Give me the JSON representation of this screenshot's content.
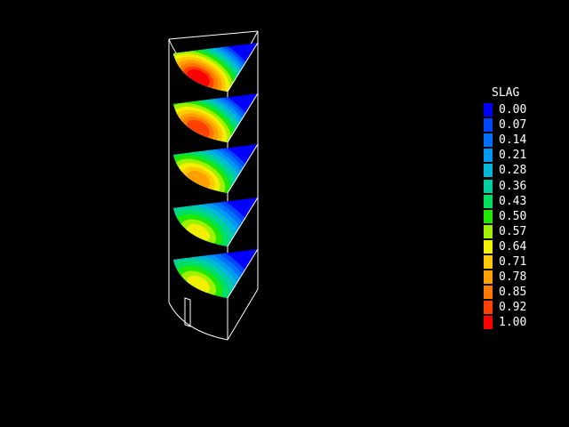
{
  "legend": {
    "title": "SLAG",
    "entries": [
      {
        "label": "0.00",
        "color": "#0000ff"
      },
      {
        "label": "0.07",
        "color": "#0048ff"
      },
      {
        "label": "0.14",
        "color": "#0070ff"
      },
      {
        "label": "0.21",
        "color": "#0098f0"
      },
      {
        "label": "0.28",
        "color": "#00b8d8"
      },
      {
        "label": "0.36",
        "color": "#00d0a0"
      },
      {
        "label": "0.43",
        "color": "#00e060"
      },
      {
        "label": "0.50",
        "color": "#20e800"
      },
      {
        "label": "0.57",
        "color": "#a0f000"
      },
      {
        "label": "0.64",
        "color": "#f0f000"
      },
      {
        "label": "0.71",
        "color": "#ffc800"
      },
      {
        "label": "0.78",
        "color": "#ffa000"
      },
      {
        "label": "0.85",
        "color": "#ff7800"
      },
      {
        "label": "0.92",
        "color": "#ff4000"
      },
      {
        "label": "1.00",
        "color": "#ff0000"
      }
    ]
  },
  "slices": [
    {
      "level": 1,
      "max_value": 1.0
    },
    {
      "level": 2,
      "max_value": 0.92
    },
    {
      "level": 3,
      "max_value": 0.78
    },
    {
      "level": 4,
      "max_value": 0.64
    },
    {
      "level": 5,
      "max_value": 0.64
    }
  ]
}
